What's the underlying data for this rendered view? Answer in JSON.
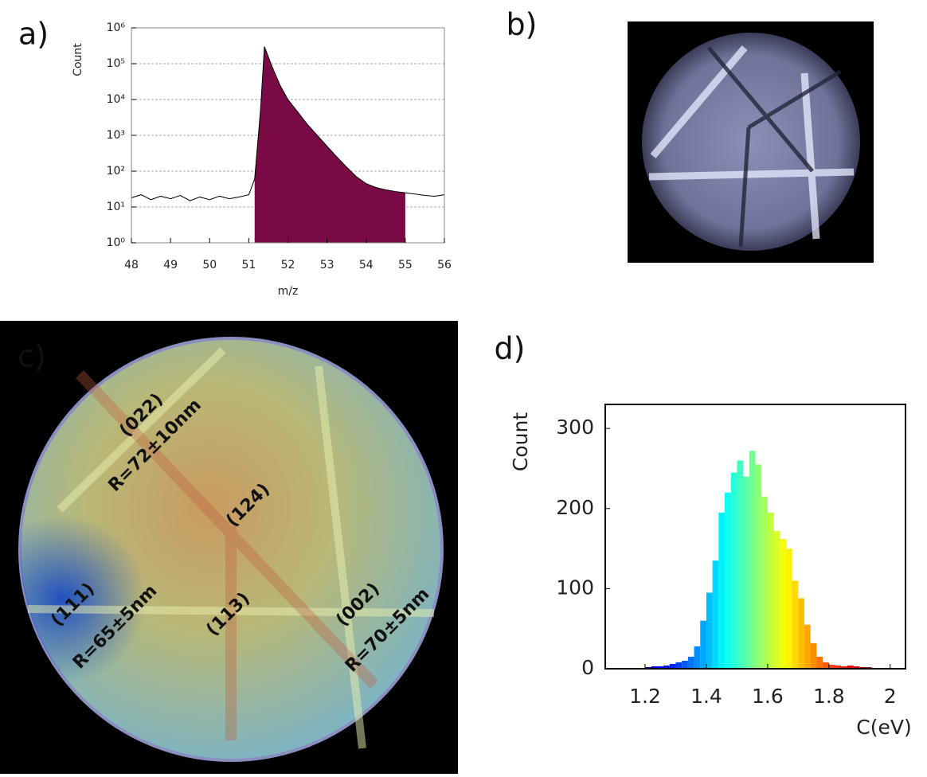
{
  "panel_labels": [
    "a)",
    "b)",
    "c)",
    "d)"
  ],
  "map_labels": [
    "(022)",
    "R=72±10nm",
    "(124)",
    "(111)",
    "R=65±5nm",
    "(113)",
    "(002)",
    "R=70±5nm"
  ],
  "chart_data": [
    {
      "type": "line",
      "log_y": true,
      "grid": true,
      "xlabel": "m/z",
      "ylabel": "Count",
      "color": "#000000",
      "fill_color": "#7a0a45",
      "x": [
        48,
        48.25,
        48.5,
        48.75,
        49,
        49.25,
        49.5,
        49.75,
        50,
        50.25,
        50.5,
        50.75,
        51,
        51.15,
        51.3,
        51.4,
        51.6,
        51.8,
        52,
        52.25,
        52.5,
        52.75,
        53,
        53.25,
        53.5,
        53.75,
        54,
        54.25,
        54.5,
        54.75,
        55,
        55.25,
        55.5,
        55.75,
        56
      ],
      "values": [
        18,
        22,
        16,
        20,
        17,
        21,
        15,
        19,
        16,
        20,
        17,
        19,
        22,
        60,
        5000,
        300000,
        80000,
        25000,
        10000,
        4500,
        2000,
        1000,
        500,
        250,
        130,
        70,
        45,
        35,
        30,
        27,
        25,
        23,
        21,
        20,
        22
      ],
      "fill_range": [
        51.15,
        55
      ],
      "xlim": [
        48,
        56
      ],
      "xticks": [
        48,
        49,
        50,
        51,
        52,
        53,
        54,
        55,
        56
      ],
      "ylim": [
        1,
        1000000
      ],
      "yticks": [
        {
          "value": 1,
          "label": "10⁰"
        },
        {
          "value": 10,
          "label": "10¹"
        },
        {
          "value": 100,
          "label": "10²"
        },
        {
          "value": 1000,
          "label": "10³"
        },
        {
          "value": 10000,
          "label": "10⁴"
        },
        {
          "value": 100000,
          "label": "10⁵"
        },
        {
          "value": 1000000,
          "label": "10⁶"
        }
      ]
    },
    {
      "type": "histogram",
      "xlabel": "C(eV)",
      "ylabel": "Count",
      "colormap": "jet",
      "bins": [
        1.16,
        1.18,
        1.2,
        1.22,
        1.24,
        1.26,
        1.28,
        1.3,
        1.32,
        1.34,
        1.36,
        1.38,
        1.4,
        1.42,
        1.44,
        1.46,
        1.48,
        1.5,
        1.52,
        1.54,
        1.56,
        1.58,
        1.6,
        1.62,
        1.64,
        1.66,
        1.68,
        1.7,
        1.72,
        1.74,
        1.76,
        1.78,
        1.8,
        1.82,
        1.84,
        1.86,
        1.88,
        1.9,
        1.92,
        1.94,
        1.96
      ],
      "values": [
        0,
        1,
        2,
        3,
        3,
        4,
        6,
        8,
        10,
        15,
        28,
        60,
        95,
        135,
        195,
        220,
        245,
        260,
        240,
        272,
        255,
        215,
        195,
        172,
        162,
        150,
        110,
        88,
        55,
        32,
        15,
        8,
        5,
        4,
        3,
        4,
        3,
        2,
        2,
        1
      ],
      "xlim": [
        1.07,
        2.05
      ],
      "xticks": [
        1.2,
        1.4,
        1.6,
        1.8,
        2
      ],
      "ylim": [
        0,
        330
      ],
      "yticks": [
        0,
        100,
        200,
        300
      ]
    }
  ]
}
